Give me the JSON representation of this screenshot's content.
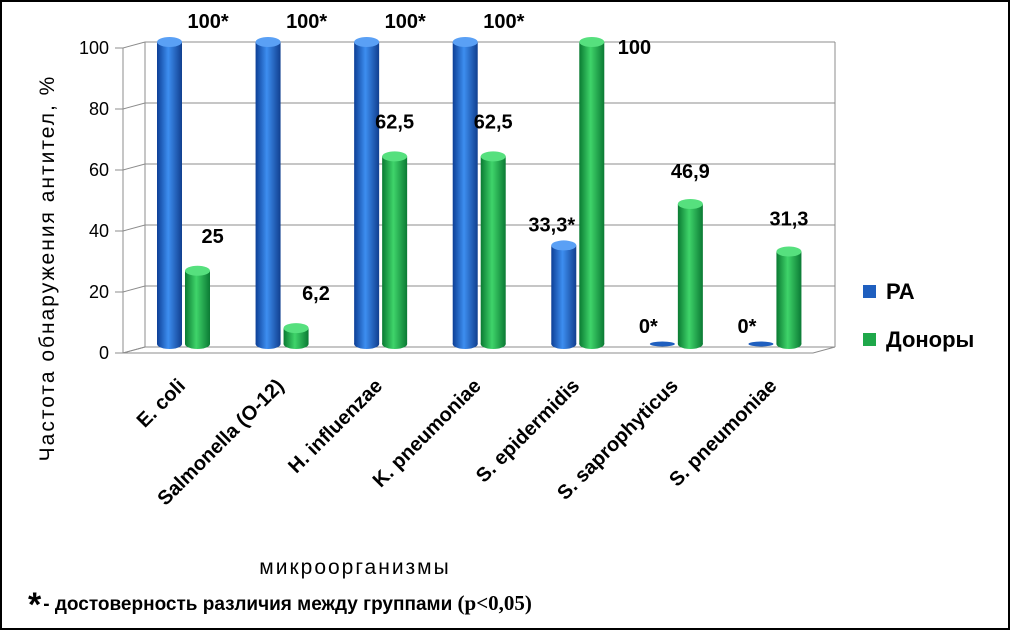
{
  "chart_data": {
    "type": "bar",
    "categories": [
      "E. coli",
      "Salmonella (O-12)",
      "H. influenzae",
      "K. pneumoniae",
      "S. epidermidis",
      "S. saprophyticus",
      "S. pneumoniae"
    ],
    "series": [
      {
        "name": "РА",
        "color": "#1f5fbf",
        "values": [
          100,
          100,
          100,
          100,
          33.3,
          0,
          0
        ],
        "labels": [
          "100*",
          "100*",
          "100*",
          "100*",
          "33,3*",
          "0*",
          "0*"
        ]
      },
      {
        "name": "Доноры",
        "color": "#1fa84a",
        "values": [
          25,
          6.2,
          62.5,
          62.5,
          100,
          46.9,
          31.3
        ],
        "labels": [
          "25",
          "6,2",
          "62,5",
          "62,5",
          "100",
          "46,9",
          "31,3"
        ]
      }
    ],
    "yticks": [
      "0",
      "20",
      "40",
      "60",
      "80",
      "100"
    ],
    "ylim": [
      0,
      100
    ],
    "ylabel": "Частота обнаружения антител, %",
    "xlabel": "микроорганизмы",
    "grid": true,
    "legend_position": "right"
  },
  "footnote": {
    "star": "*",
    "text": "- достоверность различия между группами ",
    "pvalue": "(p<0,05)"
  }
}
